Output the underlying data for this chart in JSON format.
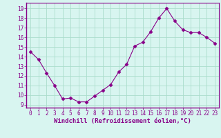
{
  "x": [
    0,
    1,
    2,
    3,
    4,
    5,
    6,
    7,
    8,
    9,
    10,
    11,
    12,
    13,
    14,
    15,
    16,
    17,
    18,
    19,
    20,
    21,
    22,
    23
  ],
  "y": [
    14.5,
    13.7,
    12.3,
    11.0,
    9.6,
    9.7,
    9.3,
    9.3,
    9.9,
    10.5,
    11.1,
    12.4,
    13.2,
    15.1,
    15.5,
    16.6,
    18.0,
    19.0,
    17.7,
    16.8,
    16.5,
    16.5,
    16.0,
    15.4
  ],
  "line_color": "#880088",
  "marker": "D",
  "marker_size": 2.5,
  "bg_color": "#d8f5f0",
  "grid_color": "#aaddcc",
  "xlabel": "Windchill (Refroidissement éolien,°C)",
  "xlabel_color": "#880088",
  "yticks": [
    9,
    10,
    11,
    12,
    13,
    14,
    15,
    16,
    17,
    18,
    19
  ],
  "ylim": [
    8.7,
    19.6
  ],
  "xlim": [
    -0.5,
    23.5
  ],
  "tick_color": "#880088",
  "axis_color": "#880088",
  "tick_fontsize": 5.5,
  "xlabel_fontsize": 6.5
}
